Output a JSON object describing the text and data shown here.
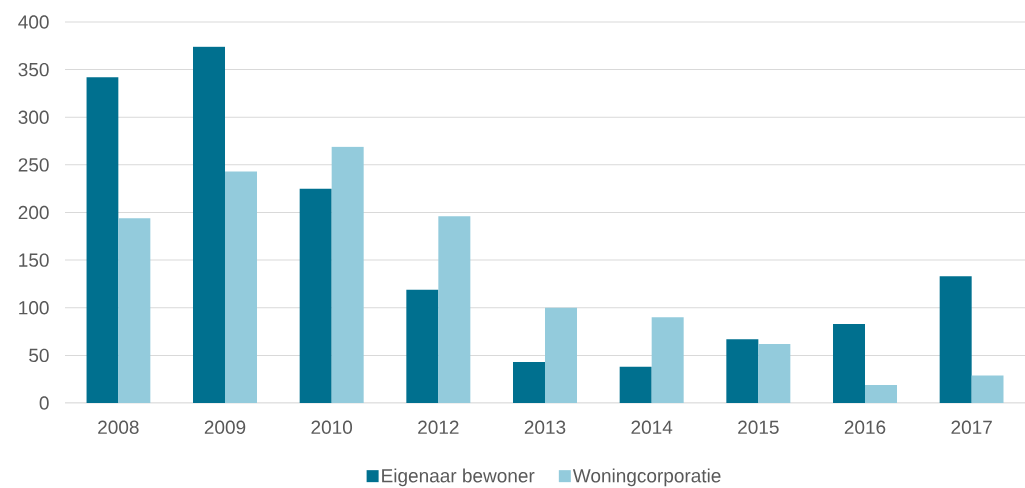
{
  "chart_data": {
    "type": "bar",
    "categories": [
      "2008",
      "2009",
      "2010",
      "2012",
      "2013",
      "2014",
      "2015",
      "2016",
      "2017"
    ],
    "series": [
      {
        "name": "Eigenaar bewoner",
        "color": "#00708f",
        "values": [
          342,
          374,
          225,
          119,
          43,
          38,
          67,
          83,
          133
        ]
      },
      {
        "name": "Woningcorporatie",
        "color": "#93cbdc",
        "values": [
          194,
          243,
          269,
          196,
          100,
          90,
          62,
          19,
          29
        ]
      }
    ],
    "ylim": [
      0,
      400
    ],
    "yticks": [
      0,
      50,
      100,
      150,
      200,
      250,
      300,
      350,
      400
    ],
    "grid": "y",
    "legend": "bottom"
  }
}
